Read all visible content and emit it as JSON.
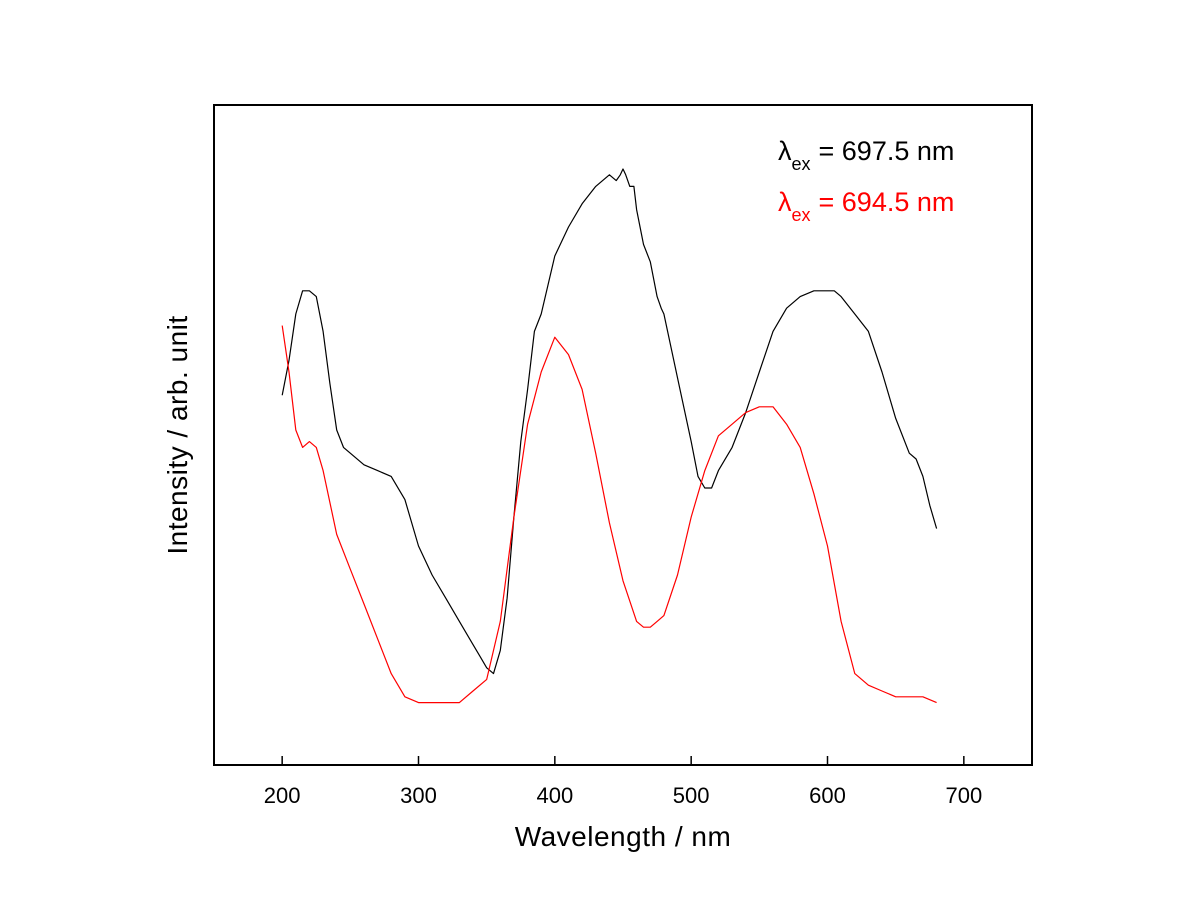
{
  "chart_data": {
    "type": "line",
    "xlabel": "Wavelength / nm",
    "ylabel": "Intensity / arb. unit",
    "xlim": [
      150,
      750
    ],
    "ylim": [
      0,
      100
    ],
    "xticks": [
      200,
      300,
      400,
      500,
      600,
      700
    ],
    "y_ticks_shown": false,
    "grid": false,
    "legend": {
      "placement": "top-right",
      "entries": [
        {
          "symbol": "λ",
          "subscript": "ex",
          "text": "= 697.5 nm",
          "color": "#000000"
        },
        {
          "symbol": "λ",
          "subscript": "ex",
          "text": "= 694.5 nm",
          "color": "#ff0000"
        }
      ]
    },
    "series": [
      {
        "color": "#000000",
        "x": [
          200,
          205,
          210,
          215,
          220,
          225,
          230,
          235,
          240,
          245,
          250,
          260,
          270,
          280,
          290,
          300,
          310,
          320,
          330,
          340,
          345,
          350,
          355,
          360,
          365,
          370,
          375,
          380,
          385,
          390,
          395,
          400,
          410,
          420,
          430,
          440,
          445,
          448,
          450,
          452,
          455,
          458,
          460,
          465,
          470,
          475,
          478,
          480,
          490,
          500,
          505,
          510,
          515,
          520,
          530,
          540,
          550,
          560,
          570,
          580,
          590,
          600,
          605,
          610,
          620,
          630,
          640,
          650,
          660,
          665,
          670,
          675,
          680
        ],
        "y": [
          56,
          62,
          70,
          74,
          74,
          73,
          67,
          58,
          50,
          47,
          46,
          44,
          43,
          42,
          38,
          30,
          25,
          21,
          17,
          13,
          11,
          9,
          8,
          12,
          21,
          35,
          48,
          57,
          67,
          70,
          75,
          80,
          85,
          89,
          92,
          94,
          93,
          94,
          95,
          94,
          92,
          92,
          88,
          82,
          79,
          73,
          71,
          70,
          59,
          48,
          42,
          40,
          40,
          43,
          47,
          53,
          60,
          67,
          71,
          73,
          74,
          74,
          74,
          73,
          70,
          67,
          60,
          52,
          46,
          45,
          42,
          37,
          33
        ]
      },
      {
        "color": "#ff0000",
        "x": [
          200,
          205,
          210,
          215,
          220,
          225,
          230,
          240,
          250,
          260,
          270,
          280,
          290,
          300,
          310,
          320,
          330,
          340,
          350,
          360,
          370,
          380,
          390,
          400,
          410,
          420,
          430,
          440,
          450,
          460,
          465,
          470,
          475,
          480,
          490,
          500,
          510,
          520,
          530,
          540,
          550,
          555,
          560,
          570,
          580,
          590,
          600,
          610,
          620,
          630,
          640,
          650,
          660,
          670,
          680
        ],
        "y": [
          68,
          60,
          50,
          47,
          48,
          47,
          43,
          32,
          26,
          20,
          14,
          8,
          4,
          3,
          3,
          3,
          3,
          5,
          7,
          17,
          35,
          51,
          60,
          66,
          63,
          57,
          46,
          34,
          24,
          17,
          16,
          16,
          17,
          18,
          25,
          35,
          43,
          49,
          51,
          53,
          54,
          54,
          54,
          51,
          47,
          39,
          30,
          17,
          8,
          6,
          5,
          4,
          4,
          4,
          3
        ]
      }
    ]
  }
}
